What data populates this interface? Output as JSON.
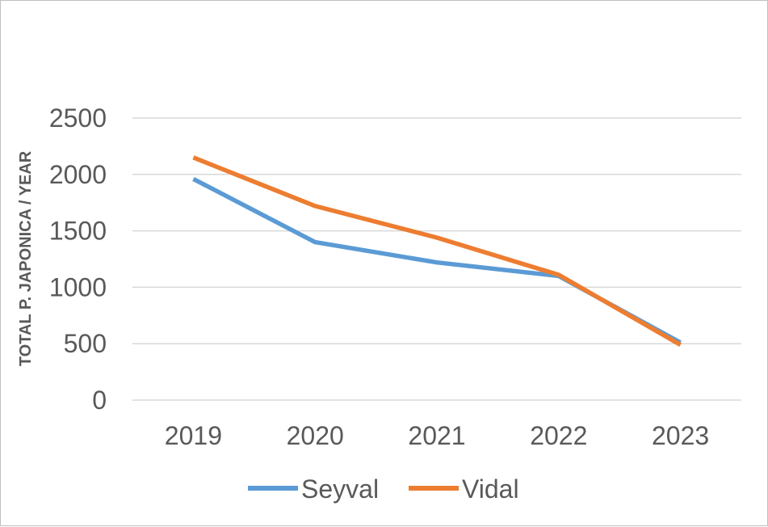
{
  "chart_data": {
    "type": "line",
    "title": "",
    "xlabel": "",
    "ylabel": "TOTAL  P. JAPONICA  /  YEAR",
    "categories": [
      "2019",
      "2020",
      "2021",
      "2022",
      "2023"
    ],
    "ylim": [
      0,
      2500
    ],
    "yticks": [
      "0",
      "500",
      "1000",
      "1500",
      "2000",
      "2500"
    ],
    "grid": true,
    "legend_position": "bottom",
    "series": [
      {
        "name": "Seyval",
        "color": "#5B9BD5",
        "values": [
          1960,
          1400,
          1220,
          1100,
          510
        ]
      },
      {
        "name": "Vidal",
        "color": "#ED7D31",
        "values": [
          2150,
          1720,
          1440,
          1110,
          490
        ]
      }
    ]
  }
}
